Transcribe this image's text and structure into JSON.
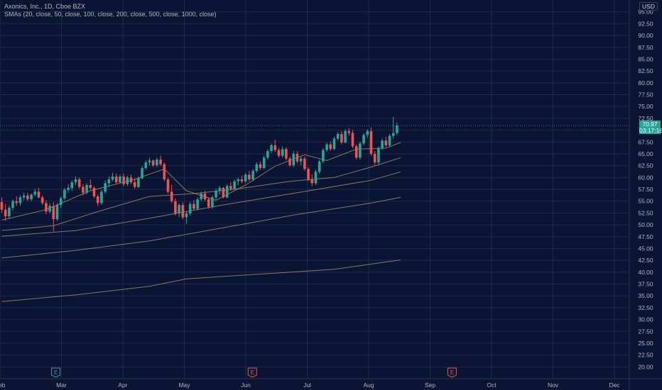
{
  "legend": {
    "title": "Axonics, Inc., 1D, Cboe BZX",
    "smas": "SMAs (20, close, 50, close, 100, close, 200, close, 500, close, 1000, close)"
  },
  "price_scale": {
    "currency": "USD",
    "last_price": "70.97",
    "countdown": "03:17:16"
  },
  "colors": {
    "background": "#0c1433",
    "grid": "#1f2a48",
    "up": "#26a69a",
    "down": "#ef5350",
    "sma": "#9c8b6e",
    "text": "#b2b5be"
  },
  "earnings_markers": [
    {
      "label": "E",
      "month_index": 1,
      "day_offset": 0.0,
      "color": "#26a69a"
    },
    {
      "label": "E",
      "month_index": 4,
      "day_offset": 0.2,
      "color": "#ef5350"
    },
    {
      "label": "E",
      "month_index": 7,
      "day_offset": 0.45,
      "color": "#ef5350"
    }
  ],
  "chart_data": {
    "type": "candlestick",
    "y_axis": {
      "min": 17.5,
      "max": 97.5,
      "step": 2.5,
      "tick_labels": [
        "20.00",
        "22.50",
        "25.00",
        "27.50",
        "30.00",
        "32.50",
        "35.00",
        "37.50",
        "40.00",
        "42.50",
        "45.00",
        "47.50",
        "50.00",
        "52.50",
        "55.00",
        "57.50",
        "60.00",
        "62.50",
        "65.00",
        "67.50",
        "70.00",
        "72.50",
        "75.00",
        "77.50",
        "80.00",
        "82.50",
        "85.00",
        "87.50",
        "90.00",
        "92.50",
        "95.00"
      ]
    },
    "x_axis": {
      "months": [
        "Feb",
        "Mar",
        "Apr",
        "May",
        "Jun",
        "Jul",
        "Aug",
        "Sep",
        "Oct",
        "Nov",
        "Dec"
      ]
    },
    "grid": true,
    "last_close": 70.97,
    "candles": [
      [
        54.8,
        55.8,
        52.6,
        53.2
      ],
      [
        53.2,
        54.4,
        50.8,
        51.8
      ],
      [
        51.8,
        54.0,
        51.2,
        53.6
      ],
      [
        53.6,
        55.4,
        53.0,
        55.0
      ],
      [
        55.0,
        56.0,
        54.0,
        54.6
      ],
      [
        54.6,
        56.2,
        54.0,
        55.8
      ],
      [
        55.8,
        56.8,
        55.2,
        56.2
      ],
      [
        56.2,
        56.8,
        55.0,
        55.4
      ],
      [
        55.4,
        56.6,
        55.0,
        56.4
      ],
      [
        56.4,
        57.6,
        56.0,
        57.0
      ],
      [
        57.0,
        57.8,
        55.6,
        55.8
      ],
      [
        55.8,
        56.2,
        54.2,
        54.6
      ],
      [
        54.6,
        55.2,
        52.2,
        52.8
      ],
      [
        52.8,
        54.6,
        52.4,
        54.0
      ],
      [
        54.0,
        54.8,
        48.6,
        51.2
      ],
      [
        51.2,
        54.6,
        50.8,
        54.2
      ],
      [
        54.2,
        56.0,
        53.6,
        55.6
      ],
      [
        55.6,
        57.8,
        55.2,
        57.4
      ],
      [
        57.4,
        58.6,
        56.8,
        57.8
      ],
      [
        57.8,
        59.4,
        57.2,
        59.0
      ],
      [
        59.0,
        60.2,
        58.4,
        59.6
      ],
      [
        59.6,
        60.0,
        57.6,
        58.0
      ],
      [
        58.0,
        58.6,
        56.2,
        56.8
      ],
      [
        56.8,
        58.8,
        56.4,
        58.4
      ],
      [
        58.4,
        59.6,
        57.4,
        57.8
      ],
      [
        57.8,
        58.2,
        55.6,
        56.0
      ],
      [
        56.0,
        56.4,
        54.0,
        54.6
      ],
      [
        54.6,
        57.4,
        54.2,
        57.0
      ],
      [
        57.0,
        59.4,
        56.6,
        58.8
      ],
      [
        58.8,
        60.2,
        58.0,
        59.6
      ],
      [
        59.6,
        61.0,
        59.2,
        60.2
      ],
      [
        60.2,
        60.8,
        58.6,
        59.0
      ],
      [
        59.0,
        60.6,
        58.8,
        60.2
      ],
      [
        60.2,
        60.8,
        58.2,
        58.6
      ],
      [
        58.6,
        60.4,
        58.2,
        60.0
      ],
      [
        60.0,
        60.6,
        58.6,
        59.0
      ],
      [
        59.0,
        59.8,
        57.6,
        58.0
      ],
      [
        58.0,
        60.2,
        57.8,
        59.8
      ],
      [
        59.8,
        62.4,
        59.6,
        62.0
      ],
      [
        62.0,
        63.6,
        61.6,
        63.2
      ],
      [
        63.2,
        64.2,
        62.6,
        63.6
      ],
      [
        63.6,
        63.8,
        62.2,
        62.6
      ],
      [
        62.6,
        64.2,
        62.2,
        63.8
      ],
      [
        63.8,
        64.6,
        62.4,
        62.8
      ],
      [
        62.8,
        63.2,
        59.2,
        59.6
      ],
      [
        59.6,
        60.0,
        56.6,
        57.0
      ],
      [
        57.0,
        58.4,
        54.6,
        55.0
      ],
      [
        55.0,
        55.6,
        52.0,
        52.4
      ],
      [
        52.4,
        54.6,
        51.6,
        54.2
      ],
      [
        54.2,
        54.8,
        51.2,
        51.6
      ],
      [
        51.6,
        52.8,
        50.2,
        52.4
      ],
      [
        52.4,
        54.8,
        52.0,
        54.4
      ],
      [
        54.4,
        55.2,
        53.0,
        53.4
      ],
      [
        53.4,
        55.8,
        53.0,
        55.4
      ],
      [
        55.4,
        57.0,
        55.0,
        56.6
      ],
      [
        56.6,
        57.2,
        55.0,
        55.4
      ],
      [
        55.4,
        55.8,
        53.4,
        53.8
      ],
      [
        53.8,
        56.2,
        53.4,
        55.8
      ],
      [
        55.8,
        57.6,
        55.4,
        57.2
      ],
      [
        57.2,
        58.2,
        56.4,
        57.8
      ],
      [
        57.8,
        58.0,
        55.6,
        55.8
      ],
      [
        55.8,
        58.6,
        55.6,
        58.2
      ],
      [
        58.2,
        59.0,
        57.2,
        57.6
      ],
      [
        57.6,
        59.6,
        57.4,
        59.2
      ],
      [
        59.2,
        60.0,
        58.4,
        59.6
      ],
      [
        59.6,
        60.4,
        58.8,
        59.2
      ],
      [
        59.2,
        61.0,
        58.8,
        60.6
      ],
      [
        60.6,
        61.4,
        59.2,
        59.6
      ],
      [
        59.6,
        61.8,
        59.2,
        61.4
      ],
      [
        61.4,
        63.2,
        61.0,
        62.8
      ],
      [
        62.8,
        63.4,
        61.6,
        62.0
      ],
      [
        62.0,
        64.6,
        61.8,
        64.2
      ],
      [
        64.2,
        66.0,
        63.8,
        65.6
      ],
      [
        65.6,
        67.2,
        65.2,
        66.8
      ],
      [
        66.8,
        68.0,
        65.4,
        65.8
      ],
      [
        65.8,
        66.2,
        64.2,
        64.6
      ],
      [
        64.6,
        66.6,
        64.2,
        66.0
      ],
      [
        66.0,
        66.4,
        63.6,
        64.0
      ],
      [
        64.0,
        64.4,
        62.2,
        62.6
      ],
      [
        62.6,
        65.6,
        62.2,
        65.0
      ],
      [
        65.0,
        65.6,
        63.0,
        63.4
      ],
      [
        63.4,
        64.4,
        62.6,
        64.0
      ],
      [
        64.0,
        64.4,
        61.4,
        61.8
      ],
      [
        61.8,
        62.2,
        59.2,
        59.6
      ],
      [
        59.6,
        60.6,
        58.2,
        58.8
      ],
      [
        58.8,
        61.6,
        58.4,
        61.2
      ],
      [
        61.2,
        63.8,
        60.8,
        63.4
      ],
      [
        63.4,
        66.2,
        63.0,
        65.8
      ],
      [
        65.8,
        67.4,
        65.4,
        67.0
      ],
      [
        67.0,
        67.6,
        65.6,
        66.0
      ],
      [
        66.0,
        68.6,
        65.8,
        68.2
      ],
      [
        68.2,
        69.6,
        67.8,
        69.2
      ],
      [
        69.2,
        69.8,
        67.0,
        67.4
      ],
      [
        67.4,
        70.2,
        67.2,
        69.8
      ],
      [
        69.8,
        70.4,
        68.8,
        69.4
      ],
      [
        69.4,
        70.0,
        66.2,
        66.6
      ],
      [
        66.6,
        67.0,
        63.8,
        64.2
      ],
      [
        64.2,
        67.6,
        63.8,
        67.2
      ],
      [
        67.2,
        69.4,
        66.8,
        69.0
      ],
      [
        69.0,
        70.2,
        68.4,
        69.8
      ],
      [
        69.8,
        70.6,
        64.6,
        65.0
      ],
      [
        65.0,
        65.6,
        62.6,
        63.2
      ],
      [
        63.2,
        66.6,
        62.8,
        66.2
      ],
      [
        66.2,
        68.2,
        65.8,
        67.8
      ],
      [
        67.8,
        68.6,
        66.4,
        66.8
      ],
      [
        66.8,
        69.2,
        66.4,
        68.8
      ],
      [
        68.8,
        72.8,
        68.2,
        69.4
      ],
      [
        69.4,
        71.6,
        69.0,
        70.97
      ]
    ],
    "series": [
      {
        "type": "sma",
        "points": [
          [
            0,
            51.0
          ],
          [
            12,
            53.2
          ],
          [
            24,
            57.2
          ],
          [
            36,
            59.6
          ],
          [
            44,
            61.8
          ],
          [
            50,
            57.2
          ],
          [
            58,
            55.2
          ],
          [
            66,
            58.4
          ],
          [
            74,
            62.4
          ],
          [
            82,
            64.8
          ],
          [
            88,
            63.6
          ],
          [
            96,
            66.0
          ],
          [
            104,
            66.2
          ],
          [
            108,
            67.4
          ]
        ]
      },
      {
        "type": "sma",
        "points": [
          [
            0,
            48.8
          ],
          [
            14,
            49.8
          ],
          [
            26,
            52.8
          ],
          [
            40,
            56.0
          ],
          [
            52,
            56.6
          ],
          [
            64,
            57.6
          ],
          [
            78,
            59.2
          ],
          [
            90,
            60.0
          ],
          [
            100,
            62.2
          ],
          [
            108,
            64.2
          ]
        ]
      },
      {
        "type": "sma",
        "points": [
          [
            0,
            47.6
          ],
          [
            20,
            48.8
          ],
          [
            40,
            51.4
          ],
          [
            60,
            54.2
          ],
          [
            80,
            56.8
          ],
          [
            100,
            59.4
          ],
          [
            108,
            61.2
          ]
        ]
      },
      {
        "type": "sma",
        "points": [
          [
            0,
            43.0
          ],
          [
            20,
            44.6
          ],
          [
            40,
            46.6
          ],
          [
            60,
            49.4
          ],
          [
            80,
            52.2
          ],
          [
            100,
            54.6
          ],
          [
            108,
            55.8
          ]
        ]
      },
      {
        "type": "sma",
        "points": [
          [
            0,
            33.8
          ],
          [
            20,
            35.2
          ],
          [
            40,
            37.0
          ],
          [
            50,
            38.6
          ],
          [
            70,
            39.6
          ],
          [
            90,
            40.6
          ],
          [
            108,
            42.6
          ]
        ]
      }
    ]
  }
}
